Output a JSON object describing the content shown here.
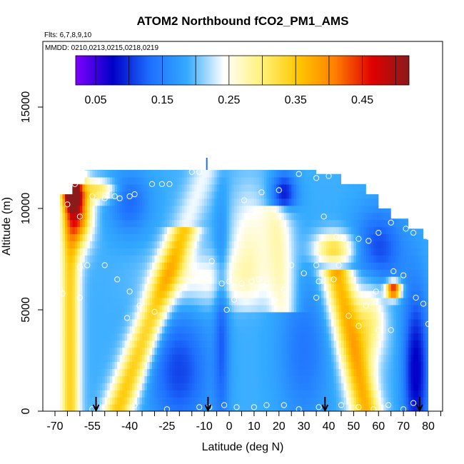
{
  "chart_data": {
    "type": "heatmap",
    "title": "ATOM2 Northbound fCO2_PM1_AMS",
    "subtitle_flights": "Flts: 6,7,8,9,10",
    "subtitle_dates": "MMDD: 0210,0213,0215,0218,0219",
    "xlabel": "Latitude (deg N)",
    "ylabel": "Altitude (m)",
    "xlim": [
      -70,
      85
    ],
    "ylim": [
      0,
      17500
    ],
    "xticks": [
      -70,
      -55,
      -40,
      -25,
      -10,
      0,
      10,
      20,
      30,
      40,
      50,
      60,
      70,
      80
    ],
    "xtick_labels": [
      "-70",
      "-55",
      "-40",
      "-25",
      "-10",
      "0",
      "10",
      "20",
      "30",
      "40",
      "50",
      "60",
      "70",
      "80"
    ],
    "yticks": [
      0,
      5000,
      10000,
      15000
    ],
    "ytick_labels": [
      "0",
      "5000",
      "10000",
      "15000"
    ],
    "colorbar": {
      "range": [
        0.02,
        0.52
      ],
      "tick_values": [
        0.05,
        0.15,
        0.25,
        0.35,
        0.45
      ],
      "tick_labels": [
        "0.05",
        "0.15",
        "0.25",
        "0.35",
        "0.45"
      ],
      "colors": [
        "#7f00ff",
        "#0000c8",
        "#1e6eff",
        "#33aaff",
        "#ffffff",
        "#fff27a",
        "#ffc800",
        "#ff7f00",
        "#e00000",
        "#8b1a1a"
      ]
    },
    "profile_arrows_lat": [
      -53.5,
      -8.5,
      38.5,
      76.5
    ],
    "grid": false
  }
}
